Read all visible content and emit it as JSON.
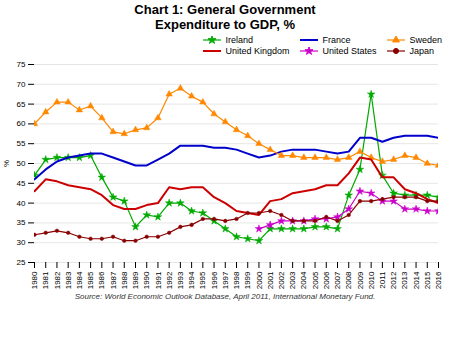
{
  "chart_data": {
    "type": "line",
    "title": "Chart 1: General Government\nExpenditure to GDP, %",
    "source": "Source: World Economic Outlook Database, April 2011, International Monetary Fund.",
    "ylabel": "%",
    "ylim": [
      25,
      75
    ],
    "yticks": [
      25,
      30,
      35,
      40,
      45,
      50,
      55,
      60,
      65,
      70,
      75
    ],
    "xlim": [
      1980,
      2016
    ],
    "x": [
      1980,
      1981,
      1982,
      1983,
      1984,
      1985,
      1986,
      1987,
      1988,
      1989,
      1990,
      1991,
      1992,
      1993,
      1994,
      1995,
      1996,
      1997,
      1998,
      1999,
      2000,
      2001,
      2002,
      2003,
      2004,
      2005,
      2006,
      2007,
      2008,
      2009,
      2010,
      2011,
      2012,
      2013,
      2014,
      2015,
      2016
    ],
    "xticks": [
      1980,
      1981,
      1982,
      1983,
      1984,
      1985,
      1986,
      1987,
      1988,
      1989,
      1990,
      1991,
      1992,
      1993,
      1994,
      1995,
      1996,
      1997,
      1998,
      1999,
      2000,
      2001,
      2002,
      2003,
      2004,
      2005,
      2006,
      2007,
      2008,
      2009,
      2010,
      2011,
      2012,
      2013,
      2014,
      2015,
      2016
    ],
    "grid": true,
    "legend": "upper right",
    "series": [
      {
        "name": "Ireland",
        "color": "#00aa00",
        "marker": "star",
        "values": [
          47.0,
          51.0,
          51.5,
          51.5,
          51.5,
          52.0,
          46.5,
          41.5,
          40.5,
          34.0,
          37.0,
          36.5,
          40.0,
          40.0,
          38.0,
          37.5,
          35.5,
          33.5,
          31.5,
          31.0,
          30.5,
          33.5,
          33.5,
          33.5,
          33.5,
          34.0,
          34.0,
          33.5,
          42.0,
          48.5,
          67.5,
          47.0,
          42.5,
          42.0,
          42.0,
          42.0,
          41.5
        ]
      },
      {
        "name": "France",
        "color": "#0000cc",
        "values": [
          46.0,
          48.5,
          50.5,
          51.5,
          52.0,
          52.5,
          52.5,
          51.5,
          50.5,
          49.5,
          49.5,
          51.0,
          52.5,
          54.5,
          54.5,
          54.5,
          54.0,
          54.0,
          53.5,
          52.5,
          51.5,
          52.0,
          53.0,
          53.5,
          53.5,
          53.5,
          53.0,
          52.5,
          53.0,
          56.5,
          56.5,
          55.5,
          56.5,
          57.0,
          57.0,
          57.0,
          56.5
        ]
      },
      {
        "name": "Sweden",
        "color": "#ff8800",
        "marker": "triangle",
        "values": [
          60.0,
          63.0,
          65.5,
          65.5,
          63.5,
          64.5,
          61.5,
          58.0,
          57.5,
          58.5,
          59.0,
          61.5,
          67.5,
          69.0,
          67.0,
          65.5,
          62.5,
          60.5,
          58.5,
          57.0,
          55.0,
          53.5,
          52.0,
          52.0,
          51.5,
          51.5,
          51.5,
          51.0,
          51.5,
          53.0,
          51.5,
          50.5,
          51.0,
          52.0,
          51.5,
          50.0,
          49.5
        ]
      },
      {
        "name": "United Kingdom",
        "color": "#cc0000",
        "values": [
          43.0,
          46.0,
          45.5,
          44.5,
          44.0,
          43.5,
          42.0,
          39.5,
          38.5,
          38.5,
          39.5,
          40.0,
          44.0,
          43.5,
          44.0,
          44.0,
          41.5,
          40.0,
          38.0,
          37.5,
          37.0,
          40.5,
          41.0,
          42.5,
          43.0,
          43.5,
          44.5,
          44.5,
          47.5,
          51.5,
          51.0,
          46.5,
          46.5,
          43.5,
          42.5,
          41.0,
          40.0
        ]
      },
      {
        "name": "United States",
        "color": "#cc00cc",
        "marker": "star",
        "values": [
          null,
          null,
          null,
          null,
          null,
          null,
          null,
          null,
          null,
          null,
          null,
          null,
          null,
          null,
          null,
          null,
          null,
          null,
          null,
          null,
          33.5,
          34.5,
          35.5,
          35.5,
          35.5,
          36.0,
          36.0,
          36.5,
          38.5,
          43.0,
          42.5,
          40.5,
          40.5,
          38.5,
          38.5,
          38.0,
          38.0
        ]
      },
      {
        "name": "Japan",
        "color": "#880000",
        "marker": "circle",
        "values": [
          32.0,
          32.5,
          33.0,
          32.5,
          31.5,
          31.0,
          31.0,
          31.5,
          30.5,
          30.5,
          31.5,
          31.5,
          32.5,
          34.0,
          34.5,
          36.0,
          36.0,
          35.5,
          36.0,
          37.5,
          37.5,
          38.0,
          37.0,
          35.5,
          35.5,
          35.5,
          36.5,
          35.5,
          37.0,
          40.5,
          40.5,
          41.0,
          41.5,
          41.5,
          41.5,
          40.5,
          40.5
        ]
      }
    ]
  }
}
